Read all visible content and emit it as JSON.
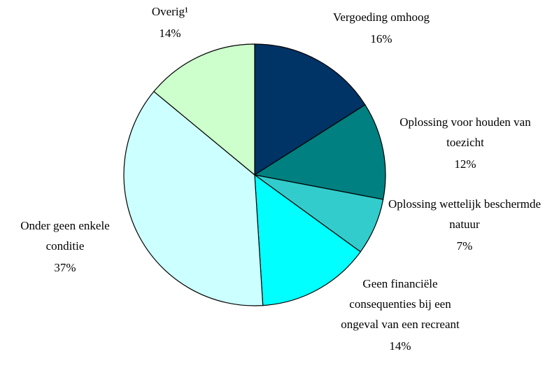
{
  "chart_data": {
    "type": "pie",
    "categories": [
      "Vergoeding omhoog",
      "Oplossing voor houden van toezicht",
      "Oplossing wettelijk beschermde natuur",
      "Geen financiële consequenties bij een ongeval van een recreant",
      "Onder geen enkele conditie",
      "Overig¹"
    ],
    "values": [
      16,
      12,
      7,
      14,
      37,
      14
    ],
    "value_labels": [
      "16%",
      "12%",
      "7%",
      "14%",
      "37%",
      "14%"
    ],
    "colors": [
      "#003366",
      "#008080",
      "#33cccc",
      "#00ffff",
      "#ccffff",
      "#ccffcc"
    ]
  }
}
